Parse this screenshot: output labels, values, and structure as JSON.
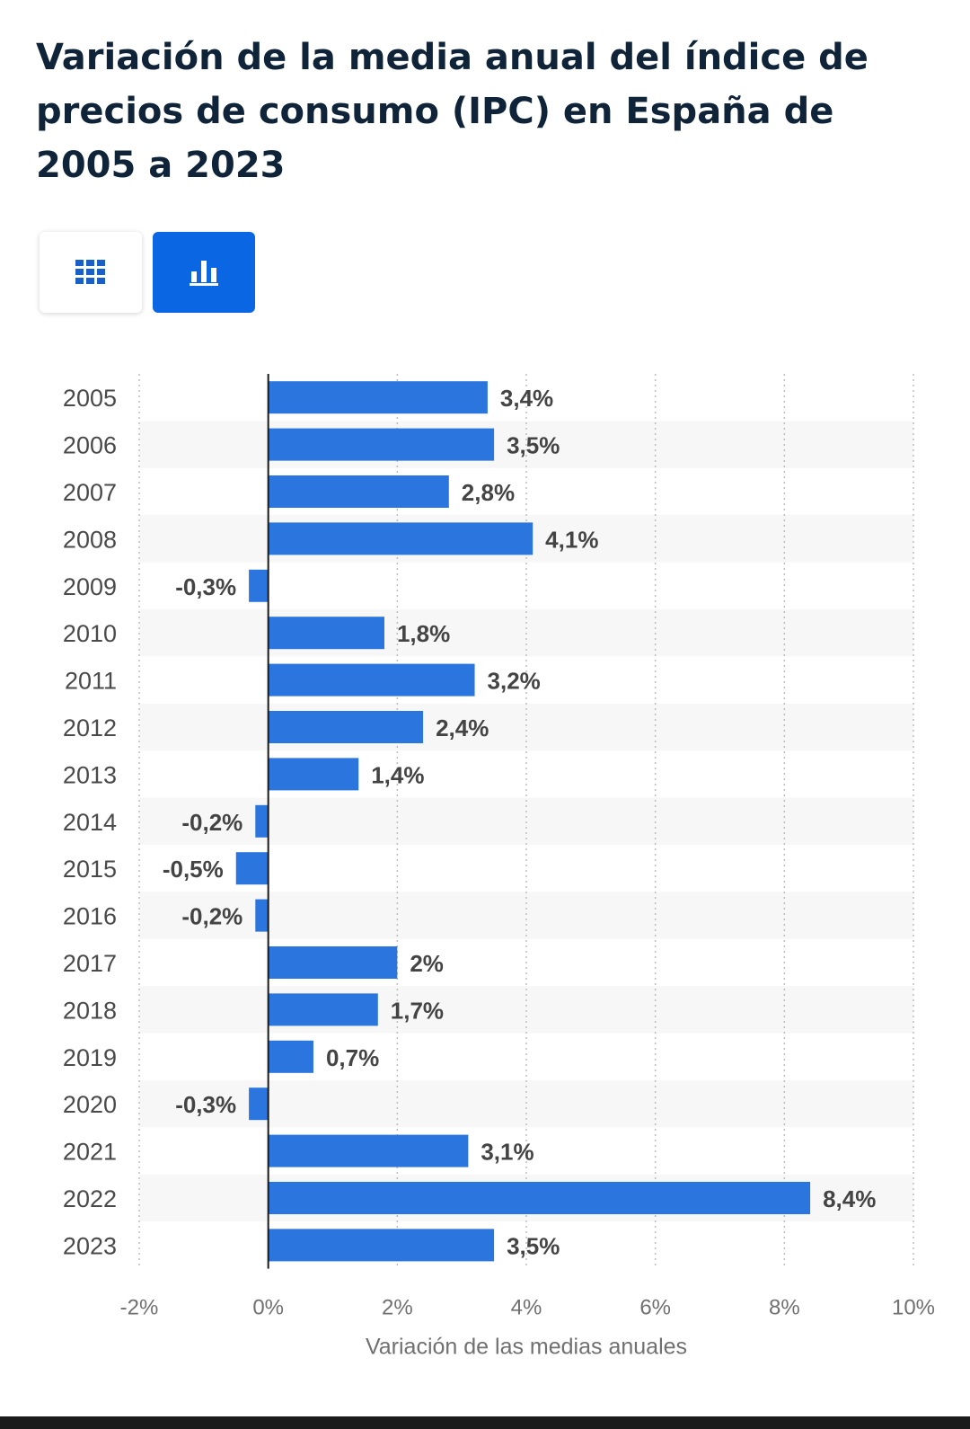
{
  "header": {
    "title": "Variación de la media anual del índice de precios de consumo (IPC) en España de 2005 a 2023"
  },
  "view_toggle": {
    "table_icon": "grid-icon",
    "chart_icon": "bar-chart-icon",
    "active": "chart",
    "active_color": "#0b66e4"
  },
  "chart_data": {
    "type": "bar",
    "orientation": "horizontal",
    "title": "Variación de la media anual del índice de precios de consumo (IPC) en España de 2005 a 2023",
    "xlabel": "Variación de las medias anuales",
    "ylabel": "",
    "xlim": [
      -2,
      10
    ],
    "x_ticks": [
      -2,
      0,
      2,
      4,
      6,
      8,
      10
    ],
    "x_tick_labels": [
      "-2%",
      "0%",
      "2%",
      "4%",
      "6%",
      "8%",
      "10%"
    ],
    "grid": "vertical dotted",
    "bar_color": "#2b75de",
    "categories": [
      "2005",
      "2006",
      "2007",
      "2008",
      "2009",
      "2010",
      "2011",
      "2012",
      "2013",
      "2014",
      "2015",
      "2016",
      "2017",
      "2018",
      "2019",
      "2020",
      "2021",
      "2022",
      "2023"
    ],
    "values": [
      3.4,
      3.5,
      2.8,
      4.1,
      -0.3,
      1.8,
      3.2,
      2.4,
      1.4,
      -0.2,
      -0.5,
      -0.2,
      2.0,
      1.7,
      0.7,
      -0.3,
      3.1,
      8.4,
      3.5
    ],
    "value_labels": [
      "3,4%",
      "3,5%",
      "2,8%",
      "4,1%",
      "-0,3%",
      "1,8%",
      "3,2%",
      "2,4%",
      "1,4%",
      "-0,2%",
      "-0,5%",
      "-0,2%",
      "2%",
      "1,7%",
      "0,7%",
      "-0,3%",
      "3,1%",
      "8,4%",
      "3,5%"
    ]
  }
}
